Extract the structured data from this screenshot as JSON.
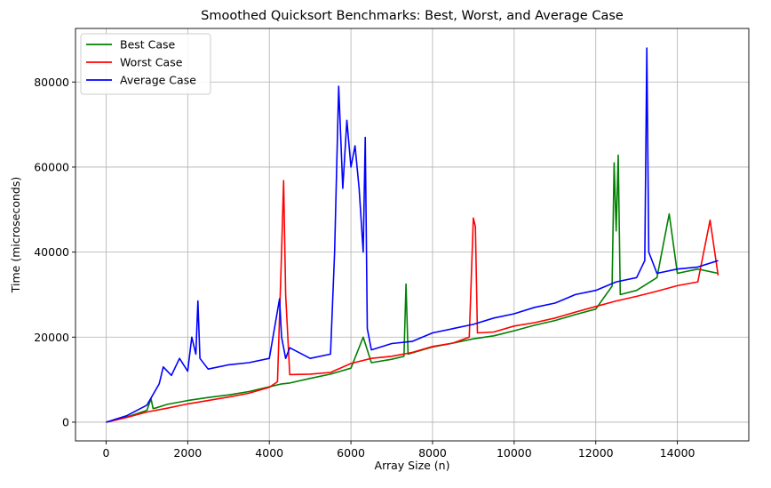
{
  "chart_data": {
    "type": "line",
    "title": "Smoothed Quicksort Benchmarks: Best, Worst, and Average Case",
    "xlabel": "Array Size (n)",
    "ylabel": "Time (microseconds)",
    "xlim": [
      -750,
      15750
    ],
    "ylim": [
      -4400,
      92600
    ],
    "xticks": [
      0,
      2000,
      4000,
      6000,
      8000,
      10000,
      12000,
      14000
    ],
    "xtick_labels": [
      "0",
      "2000",
      "4000",
      "6000",
      "8000",
      "10000",
      "12000",
      "14000"
    ],
    "yticks": [
      0,
      20000,
      40000,
      60000,
      80000
    ],
    "ytick_labels": [
      "0",
      "20000",
      "40000",
      "60000",
      "80000"
    ],
    "grid": true,
    "legend_position": "upper-left",
    "series": [
      {
        "name": "Best Case",
        "color": "#008000",
        "x": [
          0,
          500,
          1000,
          1100,
          1150,
          1200,
          1500,
          2000,
          2500,
          3000,
          3500,
          4000,
          4300,
          4500,
          5000,
          5500,
          6000,
          6300,
          6500,
          7000,
          7300,
          7350,
          7400,
          7500,
          8000,
          8500,
          9000,
          9500,
          10000,
          10500,
          11000,
          11500,
          12000,
          12400,
          12450,
          12500,
          12550,
          12600,
          13000,
          13500,
          13800,
          14000,
          14500,
          15000
        ],
        "y": [
          0,
          1200,
          2800,
          5500,
          3200,
          3300,
          4200,
          5100,
          5800,
          6400,
          7200,
          8300,
          9000,
          9200,
          10300,
          11300,
          12700,
          20000,
          14000,
          14800,
          15500,
          32500,
          16000,
          16300,
          17700,
          18600,
          19600,
          20300,
          21500,
          22800,
          23900,
          25300,
          26600,
          32000,
          61000,
          45000,
          62800,
          30000,
          31000,
          34000,
          49000,
          35000,
          36000,
          35000
        ]
      },
      {
        "name": "Worst Case",
        "color": "#ff0000",
        "x": [
          0,
          500,
          1000,
          1500,
          2000,
          2500,
          3000,
          3500,
          4000,
          4200,
          4300,
          4350,
          4400,
          4500,
          5000,
          5500,
          6000,
          6500,
          7000,
          7500,
          8000,
          8500,
          8900,
          9000,
          9050,
          9100,
          9500,
          10000,
          10500,
          11000,
          11500,
          12000,
          12500,
          13000,
          13500,
          14000,
          14500,
          14800,
          15000
        ],
        "y": [
          0,
          1100,
          2400,
          3300,
          4300,
          5100,
          5900,
          6800,
          8200,
          9500,
          40000,
          56800,
          30000,
          11200,
          11300,
          11700,
          13800,
          15000,
          15500,
          16400,
          17800,
          18600,
          20000,
          48000,
          46000,
          21000,
          21200,
          22600,
          23400,
          24500,
          25900,
          27200,
          28500,
          29600,
          30800,
          32100,
          33000,
          47500,
          34500
        ]
      },
      {
        "name": "Average Case",
        "color": "#0000ff",
        "x": [
          0,
          500,
          1000,
          1300,
          1400,
          1600,
          1800,
          2000,
          2100,
          2200,
          2250,
          2300,
          2500,
          3000,
          3500,
          4000,
          4250,
          4300,
          4400,
          4500,
          5000,
          5500,
          5600,
          5700,
          5800,
          5900,
          6000,
          6100,
          6200,
          6300,
          6350,
          6400,
          6500,
          7000,
          7500,
          8000,
          8500,
          9000,
          9500,
          10000,
          10500,
          11000,
          11500,
          12000,
          12500,
          13000,
          13200,
          13250,
          13300,
          13500,
          14000,
          14500,
          15000
        ],
        "y": [
          0,
          1500,
          4000,
          9000,
          13000,
          11000,
          15000,
          12000,
          20000,
          16000,
          28500,
          15000,
          12500,
          13500,
          14000,
          15000,
          29000,
          20000,
          15000,
          17500,
          15000,
          16000,
          40000,
          79000,
          55000,
          71000,
          60000,
          65000,
          55000,
          40000,
          67000,
          22000,
          17000,
          18500,
          19000,
          21000,
          22000,
          23000,
          24500,
          25500,
          27000,
          28000,
          30000,
          31000,
          33000,
          34000,
          38000,
          88000,
          40000,
          35000,
          36000,
          36500,
          38000
        ]
      }
    ]
  }
}
